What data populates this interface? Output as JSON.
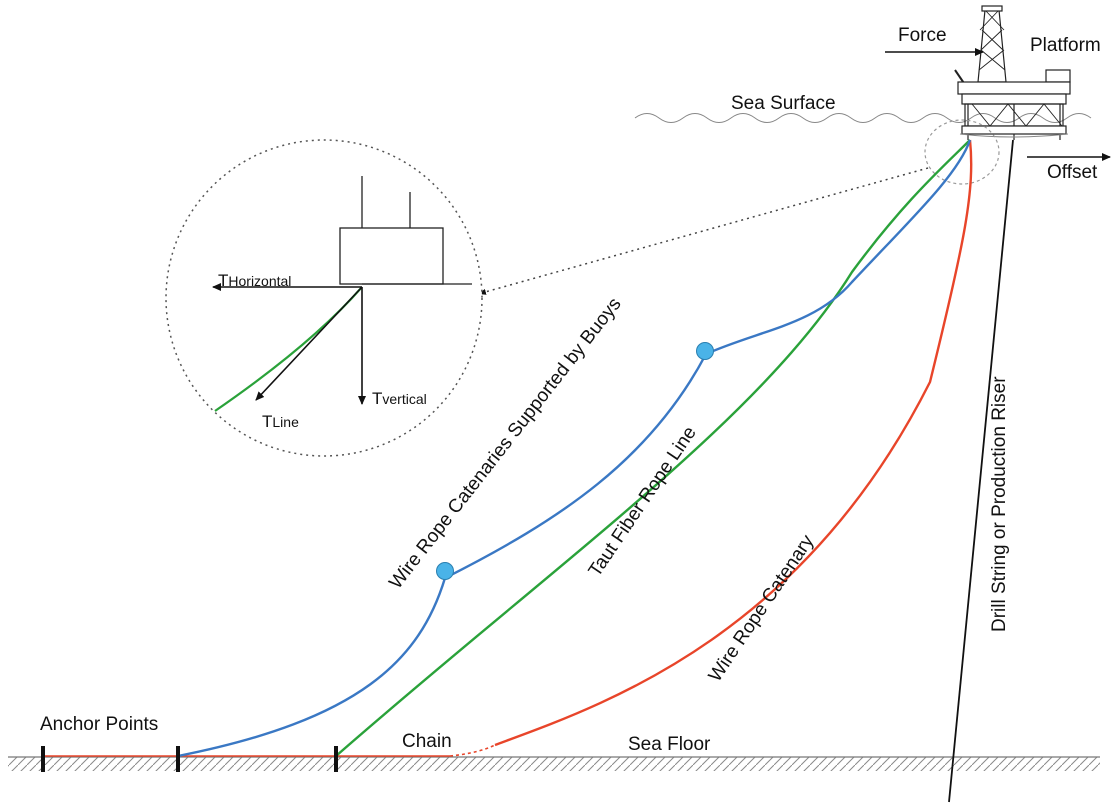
{
  "labels": {
    "force": "Force",
    "platform": "Platform",
    "sea_surface": "Sea Surface",
    "offset": "Offset",
    "wire_rope_buoys": "Wire Rope Catenaries Supported by Buoys",
    "taut_fiber": "Taut Fiber Rope Line",
    "wire_rope_catenary": "Wire Rope Catenary",
    "drill_string": "Drill String or Production Riser",
    "anchor_points": "Anchor Points",
    "chain": "Chain",
    "sea_floor": "Sea Floor"
  },
  "detail": {
    "t_horizontal_main": "T",
    "t_horizontal_sub": "Horizontal",
    "t_vertical_main": "T",
    "t_vertical_sub": "vertical",
    "t_line_main": "T",
    "t_line_sub": "Line"
  },
  "colors": {
    "wire_rope_buoys": "#3a78c4",
    "taut_fiber": "#2aa23a",
    "wire_rope_catenary": "#e8452a",
    "buoy": "#4ab3e8",
    "riser": "#111111"
  }
}
